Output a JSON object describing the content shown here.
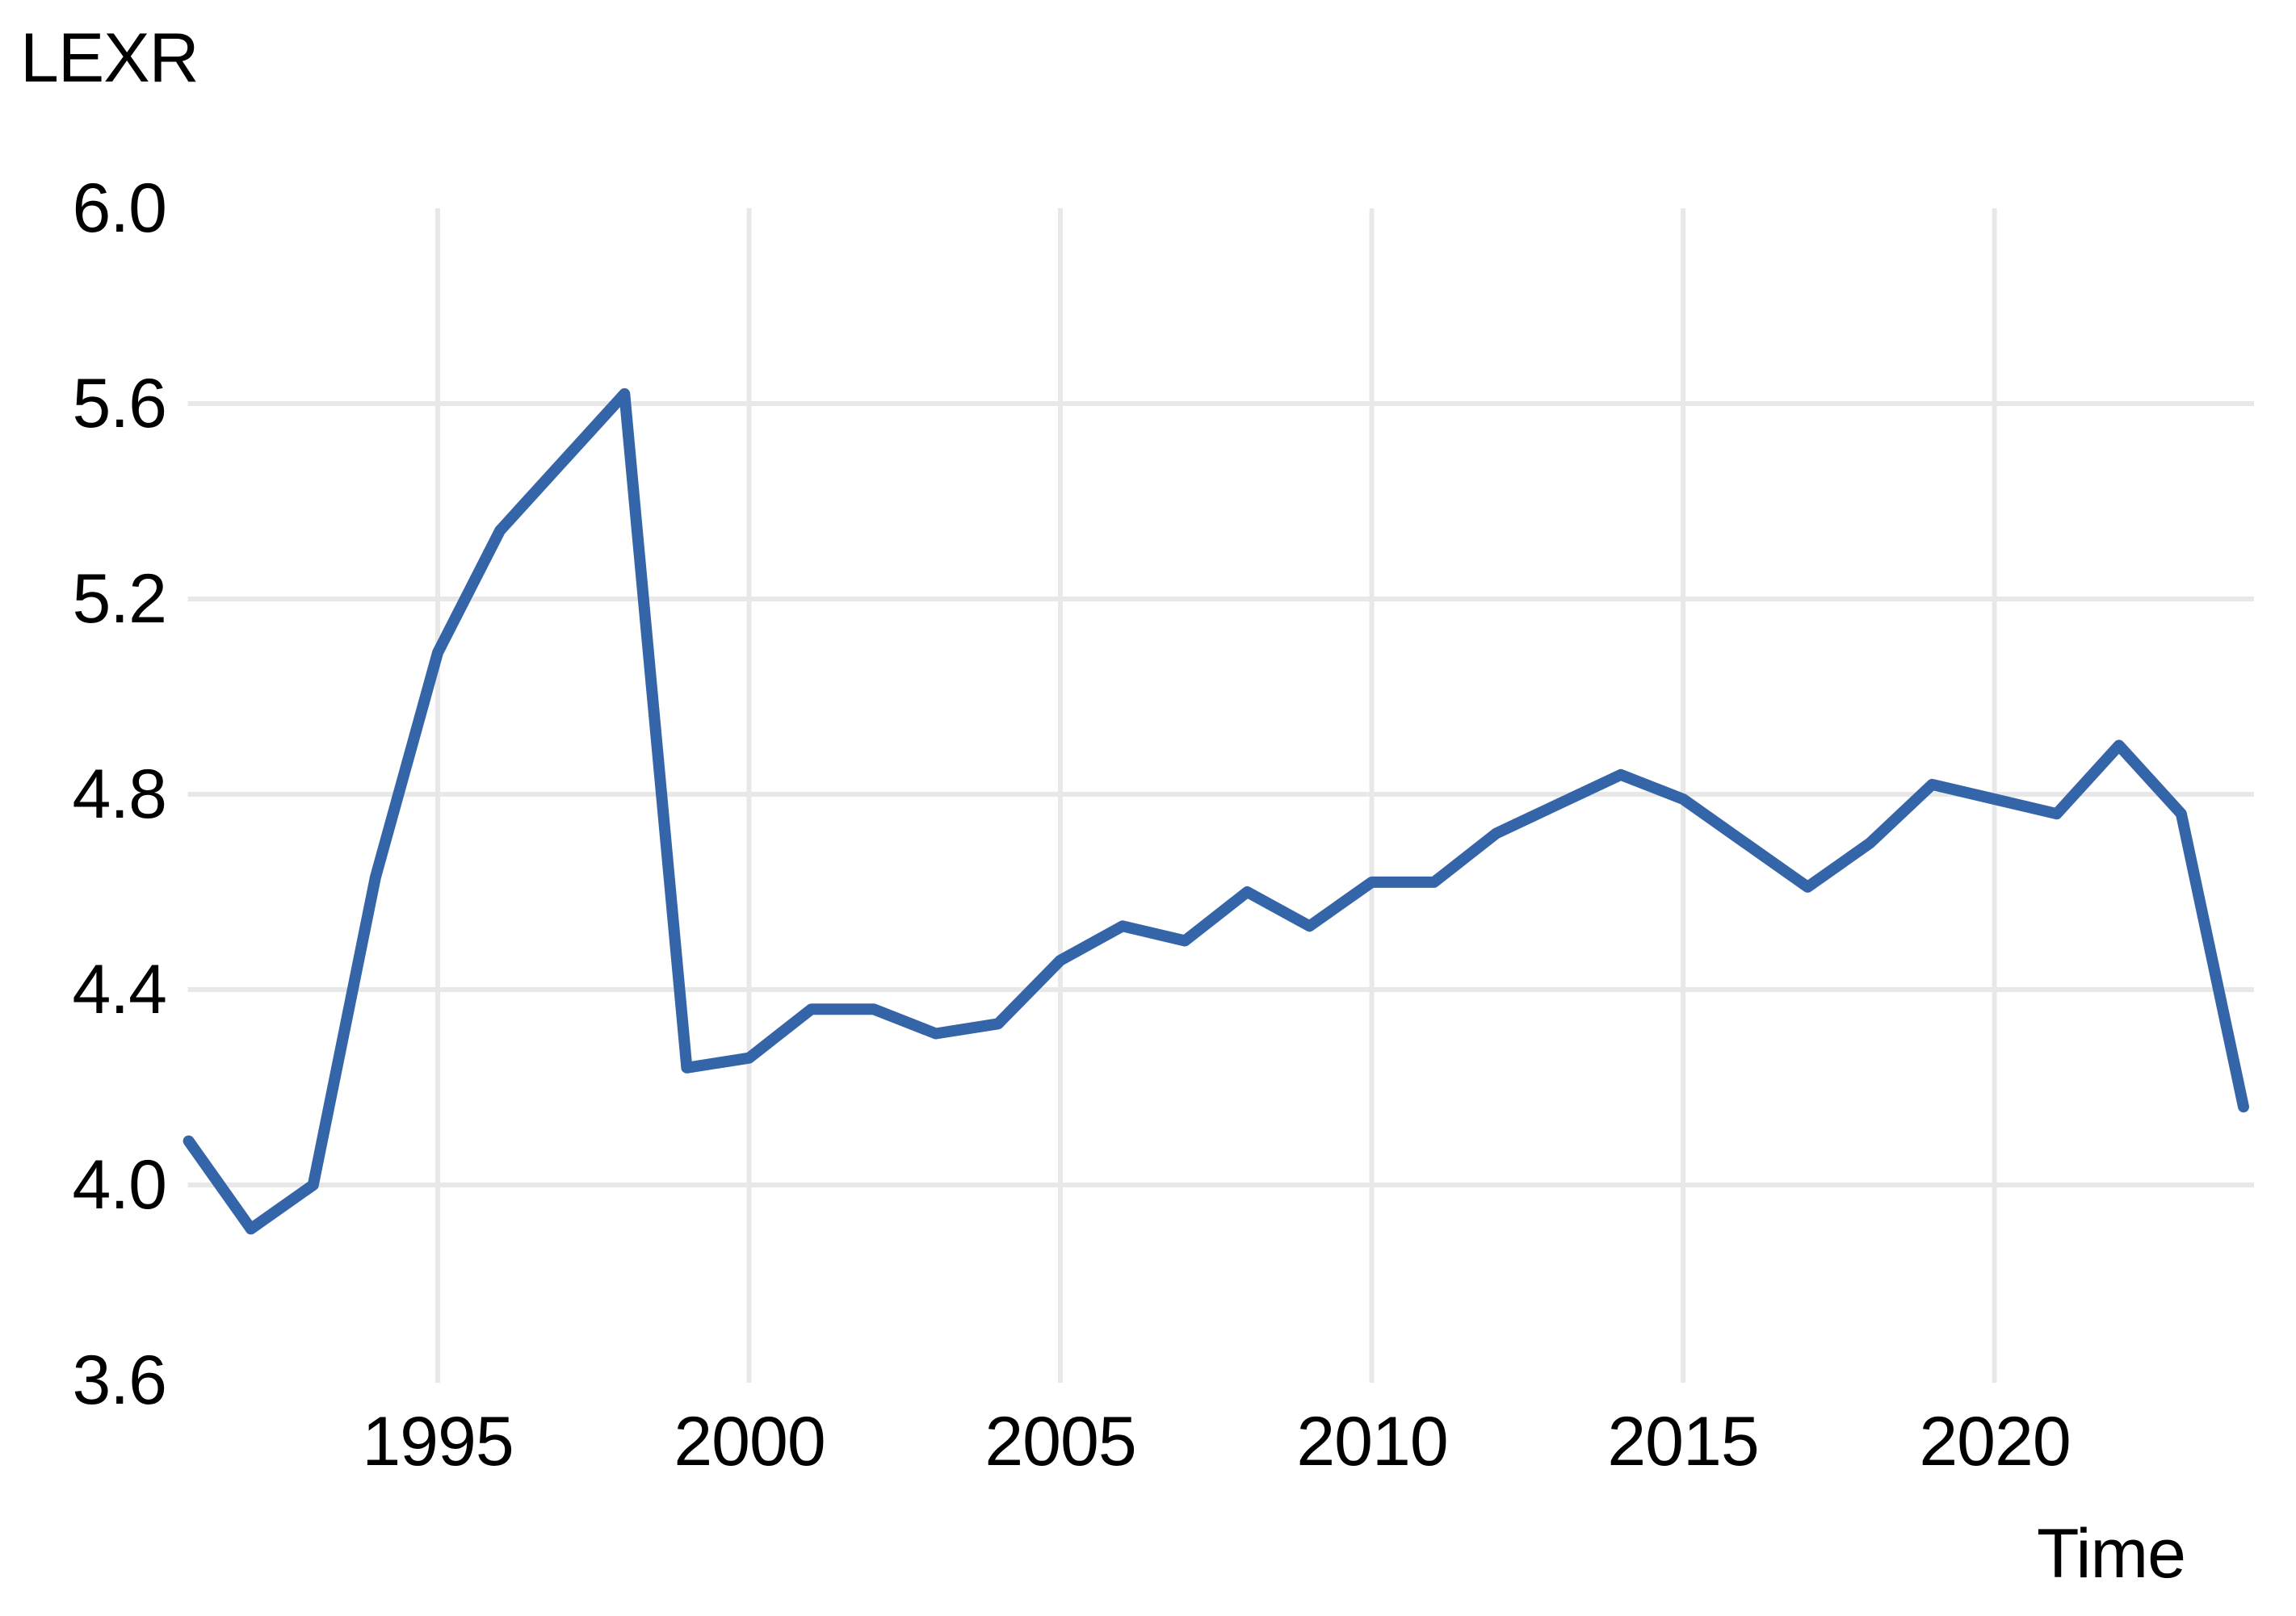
{
  "chart_data": {
    "type": "line",
    "title": "LEXR",
    "xlabel": "Time",
    "ylabel": "",
    "legend_position": "none",
    "grid": true,
    "background_color": "#ffffff",
    "line_color": "#3565a9",
    "grid_color": "#e8e8e8",
    "text_color": "#000000",
    "xlim": [
      1991,
      2024
    ],
    "ylim": [
      3.6,
      6.0
    ],
    "x_tick_values": [
      1995,
      2000,
      2005,
      2010,
      2015,
      2020
    ],
    "x_tick_labels": [
      "1995",
      "2000",
      "2005",
      "2010",
      "2015",
      "2020"
    ],
    "y_tick_values": [
      6.0,
      5.6,
      5.2,
      4.8,
      4.4,
      4.0,
      3.6
    ],
    "y_tick_labels": [
      "6.0",
      "5.6",
      "5.2",
      "4.8",
      "4.4",
      "4.0",
      "3.6"
    ],
    "y_gridline_values": [
      5.6,
      5.2,
      4.8,
      4.4,
      4.0
    ],
    "series": [
      {
        "name": "LEXR",
        "x": [
          1991,
          1992,
          1993,
          1994,
          1995,
          1996,
          1997,
          1998,
          1999,
          2000,
          2001,
          2002,
          2003,
          2004,
          2005,
          2006,
          2007,
          2008,
          2009,
          2010,
          2011,
          2012,
          2013,
          2014,
          2015,
          2016,
          2017,
          2018,
          2019,
          2020,
          2021,
          2022,
          2023,
          2024
        ],
        "values": [
          4.09,
          3.91,
          4.0,
          4.63,
          5.09,
          5.34,
          5.48,
          5.62,
          4.24,
          4.26,
          4.36,
          4.36,
          4.31,
          4.33,
          4.46,
          4.53,
          4.5,
          4.6,
          4.53,
          4.62,
          4.62,
          4.72,
          4.78,
          4.84,
          4.79,
          4.7,
          4.61,
          4.7,
          4.82,
          4.79,
          4.76,
          4.9,
          4.76,
          4.16
        ]
      }
    ]
  }
}
